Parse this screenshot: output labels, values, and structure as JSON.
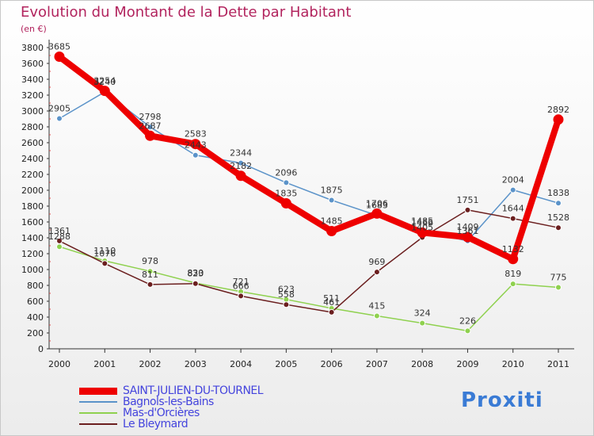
{
  "header": {
    "title": "Evolution du Montant de la Dette par Habitant",
    "subtitle": "(en €)"
  },
  "logo": {
    "text": "Proxiti"
  },
  "chart_data": {
    "type": "line",
    "title": "Evolution du Montant de la Dette par Habitant",
    "ylabel": "(en €)",
    "xlabel": "",
    "x": [
      "2000",
      "2001",
      "2002",
      "2003",
      "2004",
      "2005",
      "2006",
      "2007",
      "2008",
      "2009",
      "2010",
      "2011"
    ],
    "ylim": [
      0,
      3800
    ],
    "yticks": [
      0,
      200,
      400,
      600,
      800,
      1000,
      1200,
      1400,
      1600,
      1800,
      2000,
      2200,
      2400,
      2600,
      2800,
      3000,
      3200,
      3400,
      3600,
      3800
    ],
    "grid": false,
    "legend": "bottom-left",
    "series": [
      {
        "name": "SAINT-JULIEN-DU-TOURNEL",
        "color": "#ee0000",
        "values": [
          3685,
          3254,
          2687,
          2583,
          2182,
          1835,
          1485,
          1706,
          1466,
          1409,
          1132,
          2892
        ]
      },
      {
        "name": "Bagnols-les-Bains",
        "color": "#5b93c9",
        "values": [
          2905,
          3240,
          2798,
          2443,
          2344,
          2096,
          1875,
          1683,
          1485,
          1361,
          2004,
          1838
        ]
      },
      {
        "name": "Mas-d'Orcières",
        "color": "#8fd14f",
        "values": [
          1288,
          1110,
          978,
          830,
          721,
          623,
          511,
          415,
          324,
          226,
          819,
          775
        ]
      },
      {
        "name": "Le Bleymard",
        "color": "#6b1f1f",
        "values": [
          1361,
          1076,
          811,
          823,
          666,
          558,
          461,
          969,
          1405,
          1751,
          1644,
          1528
        ]
      }
    ]
  }
}
